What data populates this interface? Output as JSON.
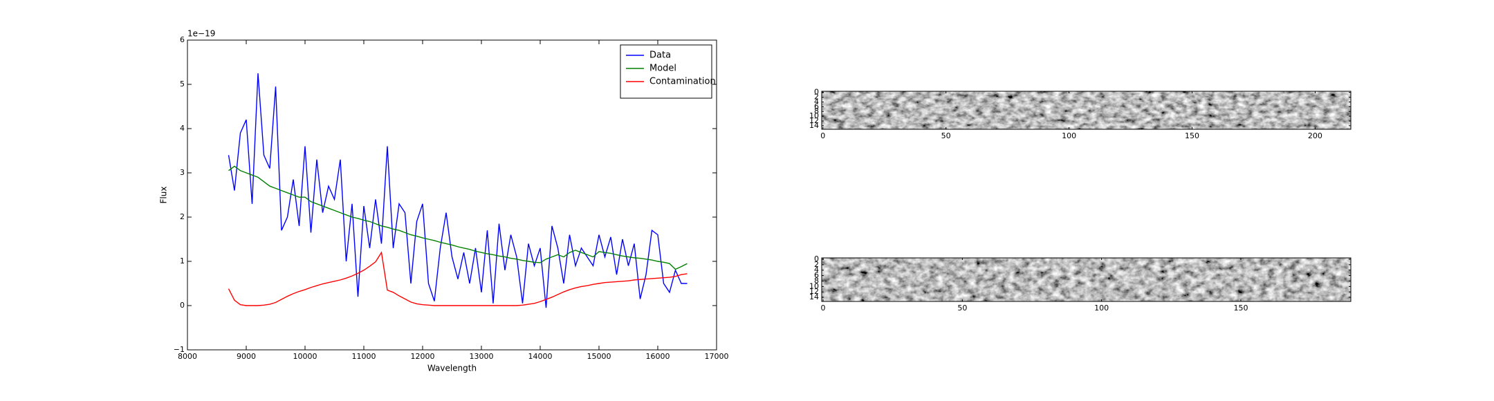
{
  "chart_data": [
    {
      "type": "line",
      "y_offset_label": "1e−19",
      "xlabel": "Wavelength",
      "ylabel": "Flux",
      "xlim": [
        8000,
        17000
      ],
      "xticks": [
        8000,
        9000,
        10000,
        11000,
        12000,
        13000,
        14000,
        15000,
        16000,
        17000
      ],
      "ylim": [
        -1,
        6
      ],
      "yticks": [
        {
          "value": -1,
          "label": "−1"
        },
        0,
        1,
        2,
        3,
        4,
        5,
        6
      ],
      "legend": "upper right",
      "x": [
        8700,
        8800,
        8900,
        9000,
        9100,
        9200,
        9300,
        9400,
        9500,
        9600,
        9700,
        9800,
        9900,
        10000,
        10100,
        10200,
        10300,
        10400,
        10500,
        10600,
        10700,
        10800,
        10900,
        11000,
        11100,
        11200,
        11300,
        11400,
        11500,
        11600,
        11700,
        11800,
        11900,
        12000,
        12100,
        12200,
        12300,
        12400,
        12500,
        12600,
        12700,
        12800,
        12900,
        13000,
        13100,
        13200,
        13300,
        13400,
        13500,
        13600,
        13700,
        13800,
        13900,
        14000,
        14100,
        14200,
        14300,
        14400,
        14500,
        14600,
        14700,
        14800,
        14900,
        15000,
        15100,
        15200,
        15300,
        15400,
        15500,
        15600,
        15700,
        15800,
        15900,
        16000,
        16100,
        16200,
        16300,
        16400,
        16500
      ],
      "series": [
        {
          "name": "Data",
          "color": "#0000ff",
          "values": [
            3.4,
            2.6,
            3.9,
            4.2,
            2.3,
            5.25,
            3.4,
            3.1,
            4.95,
            1.7,
            2.0,
            2.85,
            1.8,
            3.6,
            1.65,
            3.3,
            2.1,
            2.7,
            2.4,
            3.3,
            1.0,
            2.3,
            0.2,
            2.25,
            1.3,
            2.4,
            1.4,
            3.6,
            1.3,
            2.3,
            2.1,
            0.5,
            1.9,
            2.3,
            0.5,
            0.1,
            1.3,
            2.1,
            1.1,
            0.6,
            1.2,
            0.5,
            1.3,
            0.3,
            1.7,
            0.05,
            1.85,
            0.8,
            1.6,
            1.1,
            0.05,
            1.4,
            0.9,
            1.3,
            -0.05,
            1.8,
            1.3,
            0.5,
            1.6,
            0.9,
            1.3,
            1.1,
            0.9,
            1.6,
            1.1,
            1.55,
            0.7,
            1.5,
            0.9,
            1.4,
            0.15,
            0.7,
            1.7,
            1.6,
            0.5,
            0.3,
            0.8,
            0.5,
            0.5
          ]
        },
        {
          "name": "Model",
          "color": "#008000",
          "values": [
            3.05,
            3.15,
            3.05,
            3.0,
            2.95,
            2.9,
            2.8,
            2.7,
            2.65,
            2.6,
            2.55,
            2.5,
            2.45,
            2.45,
            2.35,
            2.3,
            2.25,
            2.2,
            2.15,
            2.1,
            2.05,
            2.0,
            1.97,
            1.93,
            1.9,
            1.85,
            1.8,
            1.77,
            1.73,
            1.7,
            1.65,
            1.6,
            1.57,
            1.53,
            1.5,
            1.47,
            1.43,
            1.4,
            1.37,
            1.33,
            1.3,
            1.27,
            1.23,
            1.2,
            1.17,
            1.15,
            1.12,
            1.1,
            1.07,
            1.05,
            1.02,
            1.0,
            0.98,
            0.97,
            1.05,
            1.1,
            1.15,
            1.1,
            1.2,
            1.25,
            1.2,
            1.15,
            1.1,
            1.22,
            1.2,
            1.18,
            1.15,
            1.12,
            1.1,
            1.08,
            1.07,
            1.05,
            1.03,
            1.0,
            0.98,
            0.95,
            0.82,
            0.88,
            0.95
          ]
        },
        {
          "name": "Contamination",
          "color": "#ff0000",
          "values": [
            0.38,
            0.12,
            0.02,
            0,
            0,
            0,
            0.01,
            0.03,
            0.07,
            0.14,
            0.21,
            0.27,
            0.32,
            0.36,
            0.41,
            0.45,
            0.49,
            0.52,
            0.55,
            0.58,
            0.62,
            0.67,
            0.73,
            0.8,
            0.89,
            0.99,
            1.2,
            0.35,
            0.3,
            0.22,
            0.15,
            0.08,
            0.04,
            0.02,
            0.01,
            0,
            0,
            0,
            0,
            0,
            0,
            0,
            0,
            0,
            0,
            0,
            0,
            0,
            0,
            0,
            0.01,
            0.03,
            0.05,
            0.09,
            0.14,
            0.19,
            0.25,
            0.31,
            0.36,
            0.4,
            0.43,
            0.45,
            0.48,
            0.5,
            0.52,
            0.53,
            0.54,
            0.55,
            0.56,
            0.58,
            0.59,
            0.6,
            0.61,
            0.62,
            0.63,
            0.64,
            0.66,
            0.7,
            0.72
          ]
        }
      ]
    },
    {
      "type": "image",
      "cmap": "gray",
      "xlim": [
        -0.5,
        214.5
      ],
      "xticks": [
        0,
        50,
        100,
        150,
        200
      ],
      "ylim": [
        15.5,
        -0.5
      ],
      "yticks": [
        0,
        2,
        4,
        6,
        8,
        10,
        12,
        14
      ]
    },
    {
      "type": "image",
      "cmap": "gray",
      "xlim": [
        -0.5,
        189.5
      ],
      "xticks": [
        0,
        50,
        100,
        150
      ],
      "ylim": [
        15.5,
        -0.5
      ],
      "yticks": [
        0,
        2,
        4,
        6,
        8,
        10,
        12,
        14
      ]
    }
  ]
}
